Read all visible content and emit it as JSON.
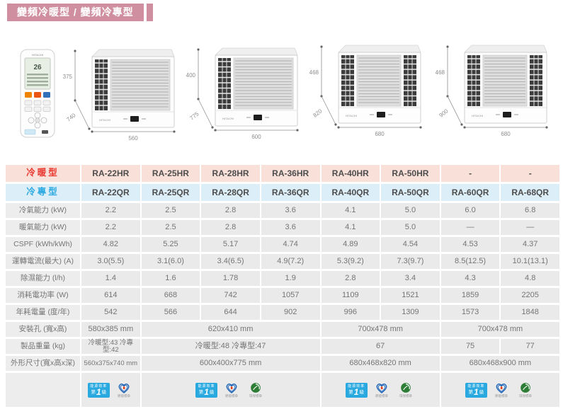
{
  "banner": {
    "title": "變頻冷暖型 / 變頻冷專型"
  },
  "brand": "HITACHI",
  "products": [
    {
      "type": "remote",
      "name": "remote-control"
    },
    {
      "type": "ac",
      "height_mm": "375",
      "depth_mm": "740",
      "width_mm": "560",
      "double_vent": false
    },
    {
      "type": "ac",
      "height_mm": "400",
      "depth_mm": "775",
      "width_mm": "600",
      "double_vent": false
    },
    {
      "type": "ac",
      "height_mm": "468",
      "depth_mm": "820",
      "width_mm": "680",
      "double_vent": true
    },
    {
      "type": "ac",
      "height_mm": "468",
      "depth_mm": "900",
      "width_mm": "680",
      "double_vent": true
    }
  ],
  "table": {
    "header_rows": [
      {
        "label": "冷暖型",
        "values": [
          "RA-22HR",
          "RA-25HR",
          "RA-28HR",
          "RA-36HR",
          "RA-40HR",
          "RA-50HR",
          "-",
          "-"
        ]
      },
      {
        "label": "冷專型",
        "values": [
          "RA-22QR",
          "RA-25QR",
          "RA-28QR",
          "RA-36QR",
          "RA-40QR",
          "RA-50QR",
          "RA-60QR",
          "RA-68QR"
        ]
      }
    ],
    "rows": [
      {
        "label": "冷氣能力 (kW)",
        "values": [
          "2.2",
          "2.5",
          "2.8",
          "3.6",
          "4.1",
          "5.0",
          "6.0",
          "6.8"
        ]
      },
      {
        "label": "暖氣能力 (kW)",
        "values": [
          "2.2",
          "2.5",
          "2.8",
          "3.6",
          "4.1",
          "5.0",
          "—",
          "—"
        ]
      },
      {
        "label": "CSPF (kWh/kWh)",
        "values": [
          "4.82",
          "5.25",
          "5.17",
          "4.74",
          "4.89",
          "4.54",
          "4.53",
          "4.37"
        ]
      },
      {
        "label": "運轉電流(最大) (A)",
        "values": [
          "3.0(5.5)",
          "3.1(6.0)",
          "3.4(6.5)",
          "4.9(7.2)",
          "5.3(9.2)",
          "7.3(9.7)",
          "8.5(12.5)",
          "10.1(13.1)"
        ]
      },
      {
        "label": "除濕能力 (l/h)",
        "values": [
          "1.4",
          "1.6",
          "1.78",
          "1.9",
          "2.8",
          "3.4",
          "4.3",
          "4.8"
        ]
      },
      {
        "label": "消耗電功率 (W)",
        "values": [
          "614",
          "668",
          "742",
          "1057",
          "1109",
          "1521",
          "1859",
          "2205"
        ]
      },
      {
        "label": "年耗電量 (度/年)",
        "values": [
          "542",
          "566",
          "644",
          "902",
          "996",
          "1309",
          "1573",
          "1848"
        ]
      },
      {
        "label": "安裝孔 (寬x高)",
        "spans": [
          {
            "cols": 1,
            "value": "580x385 mm"
          },
          {
            "cols": 3,
            "value": "620x410 mm"
          },
          {
            "cols": 2,
            "value": "700x478 mm"
          },
          {
            "cols": 2,
            "value": "700x478 mm"
          }
        ]
      },
      {
        "label": "製品重量 (kg)",
        "spans": [
          {
            "cols": 1,
            "value": "冷暖型:43 冷專型:42"
          },
          {
            "cols": 3,
            "value": "冷暖型:48 冷專型:47"
          },
          {
            "cols": 2,
            "value": "67"
          },
          {
            "cols": 1,
            "value": "75"
          },
          {
            "cols": 1,
            "value": "77"
          }
        ]
      },
      {
        "label": "外形尺寸(寬x高x深)",
        "spans": [
          {
            "cols": 1,
            "value": "560x375x740 mm"
          },
          {
            "cols": 3,
            "value": "600x400x775 mm"
          },
          {
            "cols": 2,
            "value": "680x468x820 mm"
          },
          {
            "cols": 2,
            "value": "680x468x900 mm"
          }
        ]
      }
    ],
    "badges_row": {
      "spans": [
        {
          "cols": 1,
          "badges": [
            "energy",
            "saving"
          ]
        },
        {
          "cols": 3,
          "badges": [
            "energy",
            "saving",
            "green"
          ]
        },
        {
          "cols": 2,
          "badges": [
            "energy",
            "saving",
            "green"
          ]
        },
        {
          "cols": 2,
          "badges": [
            "energy",
            "saving",
            "green"
          ]
        }
      ]
    }
  },
  "badges": {
    "energy_line1": "能源效率",
    "energy_prefix": "第",
    "energy_grade": "1",
    "energy_suffix": "級",
    "saving_caption": "節能標章",
    "green_caption": "環保標章"
  },
  "colors": {
    "banner_pink": "#d08fa0",
    "hot_red": "#e8362d",
    "hot_bg": "#f9e0d9",
    "cold_blue": "#2ba9e0",
    "cold_bg": "#dceef7",
    "cell_gray": "#eaeaea",
    "energy_blue": "#29a9e0",
    "mark_blue": "#1c63b7",
    "flame_red": "#e8380d",
    "green_mark": "#2d7d36"
  }
}
